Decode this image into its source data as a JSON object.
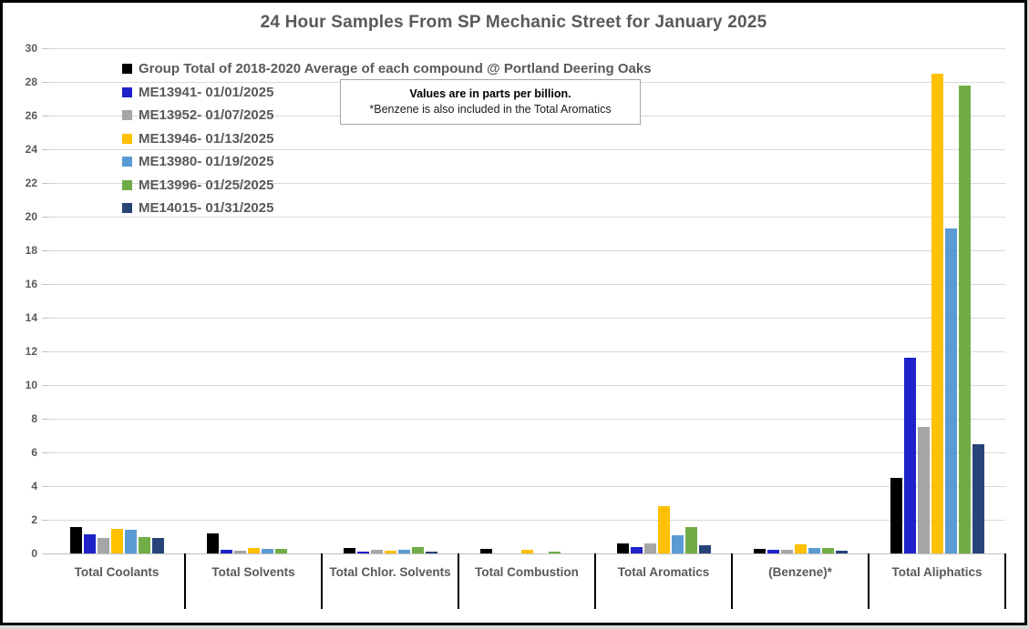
{
  "chart_data": {
    "type": "bar",
    "title": "24 Hour Samples From SP Mechanic Street for January 2025",
    "unit": "parts per billion",
    "annotation": {
      "line1": "Values are in parts per billion.",
      "line2": "*Benzene is also included in the Total Aromatics"
    },
    "categories": [
      "Total Coolants",
      "Total Solvents",
      "Total Chlor. Solvents",
      "Total Combustion",
      "Total Aromatics",
      "(Benzene)*",
      "Total Aliphatics"
    ],
    "series": [
      {
        "name": "Group Total of 2018-2020 Average of each compound @ Portland Deering Oaks",
        "color": "#000000",
        "values": [
          1.55,
          1.2,
          0.35,
          0.25,
          0.6,
          0.25,
          4.5
        ]
      },
      {
        "name": "ME13941- 01/01/2025",
        "color": "#1E22C8",
        "values": [
          1.15,
          0.2,
          0.1,
          0,
          0.4,
          0.2,
          11.6
        ]
      },
      {
        "name": "ME13952- 01/07/2025",
        "color": "#A6A6A6",
        "values": [
          0.9,
          0.15,
          0.2,
          0,
          0.6,
          0.2,
          7.5
        ]
      },
      {
        "name": "ME13946- 01/13/2025",
        "color": "#FFC000",
        "values": [
          1.45,
          0.3,
          0.15,
          0.2,
          2.8,
          0.55,
          28.5
        ]
      },
      {
        "name": "ME13980- 01/19/2025",
        "color": "#5B9BD5",
        "values": [
          1.4,
          0.25,
          0.2,
          0,
          1.1,
          0.3,
          19.3
        ]
      },
      {
        "name": "ME13996- 01/25/2025",
        "color": "#70AD47",
        "values": [
          1.0,
          0.25,
          0.4,
          0.1,
          1.55,
          0.3,
          27.8
        ]
      },
      {
        "name": "ME14015- 01/31/2025",
        "color": "#264478",
        "values": [
          0.9,
          0,
          0.1,
          0,
          0.5,
          0.15,
          6.5
        ]
      }
    ],
    "y_axis": {
      "min": 0,
      "max": 30,
      "tick_step": 2,
      "tick_labels": [
        "0",
        "2",
        "4",
        "6",
        "8",
        "10",
        "12",
        "14",
        "16",
        "18",
        "20",
        "22",
        "24",
        "26",
        "28",
        "30"
      ]
    },
    "grid": "horizontal",
    "legend_position": "top-left-inside",
    "style_colors": {
      "text": "#595959",
      "gridline": "#D9D9D9",
      "axis_line": "#C0C0C0",
      "separator": "#000000",
      "frame_border": "#000000",
      "note_border": "#A6A6A6"
    }
  }
}
